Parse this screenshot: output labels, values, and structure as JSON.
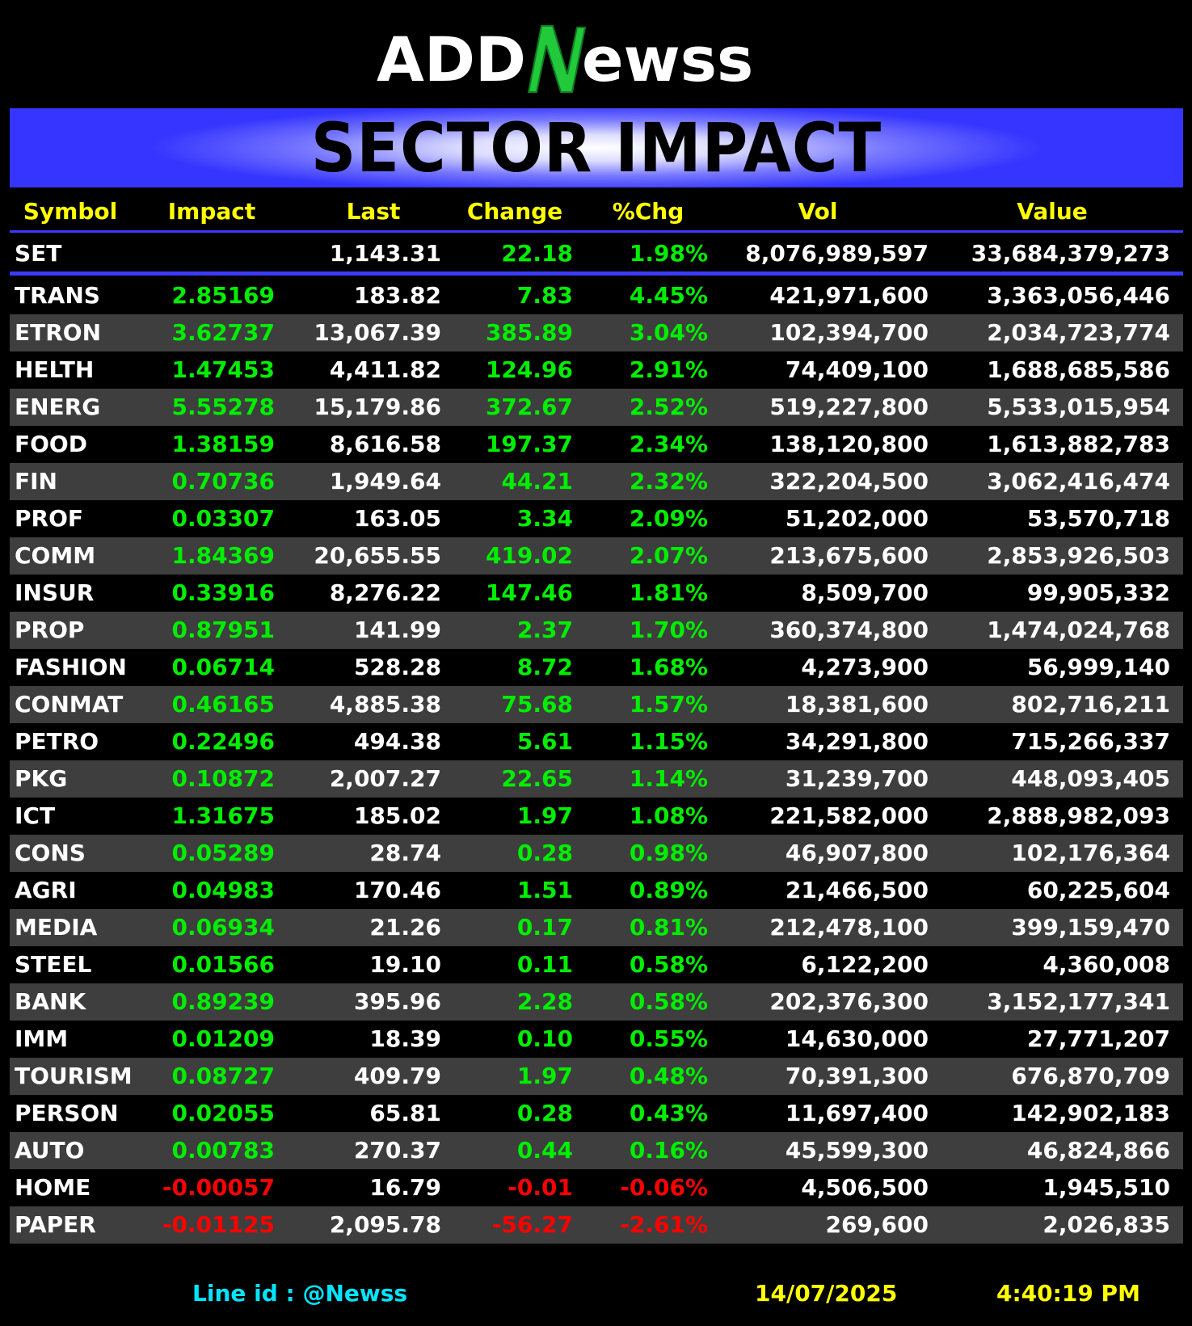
{
  "brand": {
    "logo_left": "ADD",
    "logo_right": "ewss",
    "logo_accent": "#22c93a"
  },
  "banner": {
    "title": "SECTOR IMPACT"
  },
  "columns": [
    "Symbol",
    "Impact",
    "Last",
    "Change",
    "%Chg",
    "Vol",
    "Value"
  ],
  "index_row": {
    "symbol": "SET",
    "impact": "",
    "last": "1,143.31",
    "change": "22.18",
    "pct": "1.98%",
    "vol": "8,076,989,597",
    "value": "33,684,379,273",
    "dir": "up"
  },
  "rows": [
    {
      "symbol": "TRANS",
      "impact": "2.85169",
      "last": "183.82",
      "change": "7.83",
      "pct": "4.45%",
      "vol": "421,971,600",
      "value": "3,363,056,446",
      "dir": "up"
    },
    {
      "symbol": "ETRON",
      "impact": "3.62737",
      "last": "13,067.39",
      "change": "385.89",
      "pct": "3.04%",
      "vol": "102,394,700",
      "value": "2,034,723,774",
      "dir": "up"
    },
    {
      "symbol": "HELTH",
      "impact": "1.47453",
      "last": "4,411.82",
      "change": "124.96",
      "pct": "2.91%",
      "vol": "74,409,100",
      "value": "1,688,685,586",
      "dir": "up"
    },
    {
      "symbol": "ENERG",
      "impact": "5.55278",
      "last": "15,179.86",
      "change": "372.67",
      "pct": "2.52%",
      "vol": "519,227,800",
      "value": "5,533,015,954",
      "dir": "up"
    },
    {
      "symbol": "FOOD",
      "impact": "1.38159",
      "last": "8,616.58",
      "change": "197.37",
      "pct": "2.34%",
      "vol": "138,120,800",
      "value": "1,613,882,783",
      "dir": "up"
    },
    {
      "symbol": "FIN",
      "impact": "0.70736",
      "last": "1,949.64",
      "change": "44.21",
      "pct": "2.32%",
      "vol": "322,204,500",
      "value": "3,062,416,474",
      "dir": "up"
    },
    {
      "symbol": "PROF",
      "impact": "0.03307",
      "last": "163.05",
      "change": "3.34",
      "pct": "2.09%",
      "vol": "51,202,000",
      "value": "53,570,718",
      "dir": "up"
    },
    {
      "symbol": "COMM",
      "impact": "1.84369",
      "last": "20,655.55",
      "change": "419.02",
      "pct": "2.07%",
      "vol": "213,675,600",
      "value": "2,853,926,503",
      "dir": "up"
    },
    {
      "symbol": "INSUR",
      "impact": "0.33916",
      "last": "8,276.22",
      "change": "147.46",
      "pct": "1.81%",
      "vol": "8,509,700",
      "value": "99,905,332",
      "dir": "up"
    },
    {
      "symbol": "PROP",
      "impact": "0.87951",
      "last": "141.99",
      "change": "2.37",
      "pct": "1.70%",
      "vol": "360,374,800",
      "value": "1,474,024,768",
      "dir": "up"
    },
    {
      "symbol": "FASHION",
      "impact": "0.06714",
      "last": "528.28",
      "change": "8.72",
      "pct": "1.68%",
      "vol": "4,273,900",
      "value": "56,999,140",
      "dir": "up"
    },
    {
      "symbol": "CONMAT",
      "impact": "0.46165",
      "last": "4,885.38",
      "change": "75.68",
      "pct": "1.57%",
      "vol": "18,381,600",
      "value": "802,716,211",
      "dir": "up"
    },
    {
      "symbol": "PETRO",
      "impact": "0.22496",
      "last": "494.38",
      "change": "5.61",
      "pct": "1.15%",
      "vol": "34,291,800",
      "value": "715,266,337",
      "dir": "up"
    },
    {
      "symbol": "PKG",
      "impact": "0.10872",
      "last": "2,007.27",
      "change": "22.65",
      "pct": "1.14%",
      "vol": "31,239,700",
      "value": "448,093,405",
      "dir": "up"
    },
    {
      "symbol": "ICT",
      "impact": "1.31675",
      "last": "185.02",
      "change": "1.97",
      "pct": "1.08%",
      "vol": "221,582,000",
      "value": "2,888,982,093",
      "dir": "up"
    },
    {
      "symbol": "CONS",
      "impact": "0.05289",
      "last": "28.74",
      "change": "0.28",
      "pct": "0.98%",
      "vol": "46,907,800",
      "value": "102,176,364",
      "dir": "up"
    },
    {
      "symbol": "AGRI",
      "impact": "0.04983",
      "last": "170.46",
      "change": "1.51",
      "pct": "0.89%",
      "vol": "21,466,500",
      "value": "60,225,604",
      "dir": "up"
    },
    {
      "symbol": "MEDIA",
      "impact": "0.06934",
      "last": "21.26",
      "change": "0.17",
      "pct": "0.81%",
      "vol": "212,478,100",
      "value": "399,159,470",
      "dir": "up"
    },
    {
      "symbol": "STEEL",
      "impact": "0.01566",
      "last": "19.10",
      "change": "0.11",
      "pct": "0.58%",
      "vol": "6,122,200",
      "value": "4,360,008",
      "dir": "up"
    },
    {
      "symbol": "BANK",
      "impact": "0.89239",
      "last": "395.96",
      "change": "2.28",
      "pct": "0.58%",
      "vol": "202,376,300",
      "value": "3,152,177,341",
      "dir": "up"
    },
    {
      "symbol": "IMM",
      "impact": "0.01209",
      "last": "18.39",
      "change": "0.10",
      "pct": "0.55%",
      "vol": "14,630,000",
      "value": "27,771,207",
      "dir": "up"
    },
    {
      "symbol": "TOURISM",
      "impact": "0.08727",
      "last": "409.79",
      "change": "1.97",
      "pct": "0.48%",
      "vol": "70,391,300",
      "value": "676,870,709",
      "dir": "up"
    },
    {
      "symbol": "PERSON",
      "impact": "0.02055",
      "last": "65.81",
      "change": "0.28",
      "pct": "0.43%",
      "vol": "11,697,400",
      "value": "142,902,183",
      "dir": "up"
    },
    {
      "symbol": "AUTO",
      "impact": "0.00783",
      "last": "270.37",
      "change": "0.44",
      "pct": "0.16%",
      "vol": "45,599,300",
      "value": "46,824,866",
      "dir": "up"
    },
    {
      "symbol": "HOME",
      "impact": "-0.00057",
      "last": "16.79",
      "change": "-0.01",
      "pct": "-0.06%",
      "vol": "4,506,500",
      "value": "1,945,510",
      "dir": "down"
    },
    {
      "symbol": "PAPER",
      "impact": "-0.01125",
      "last": "2,095.78",
      "change": "-56.27",
      "pct": "-2.61%",
      "vol": "269,600",
      "value": "2,026,835",
      "dir": "down"
    }
  ],
  "footer": {
    "line_id": "Line id  : @Newss",
    "date": "14/07/2025",
    "time": "4:40:19 PM"
  },
  "colors": {
    "up": "#00ee00",
    "down": "#ff0000",
    "header_text": "#ffff00",
    "rule": "#3b3bff",
    "row_alt": "#3e3e3e"
  }
}
